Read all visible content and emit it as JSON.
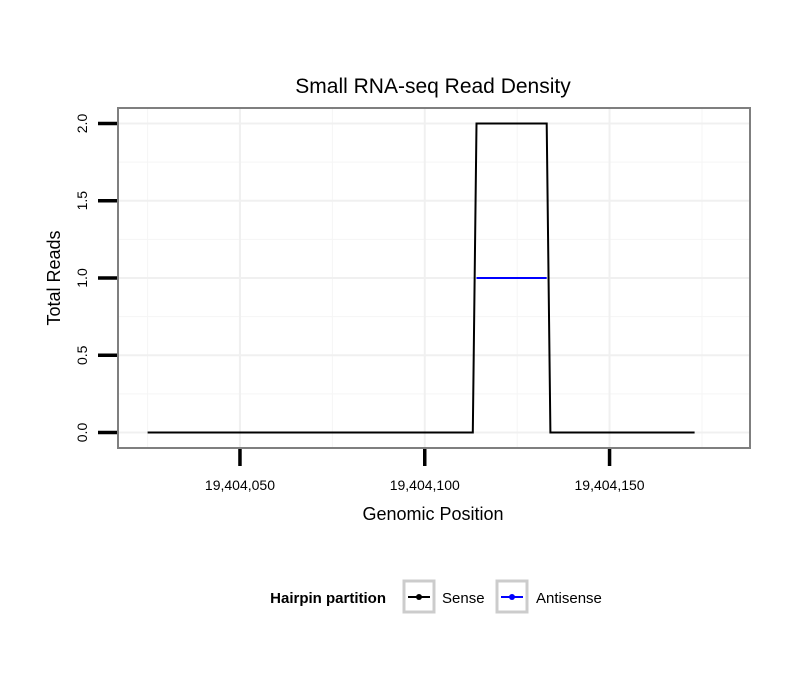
{
  "chart_data": {
    "type": "line",
    "title": "Small RNA-seq Read Density",
    "xlabel": "Genomic Position",
    "ylabel": "Total Reads",
    "xlim": [
      19404017,
      19404188
    ],
    "ylim": [
      -0.1,
      2.1
    ],
    "x_ticks": [
      19404050,
      19404100,
      19404150
    ],
    "x_tick_labels": [
      "19,404,050",
      "19,404,100",
      "19,404,150"
    ],
    "y_ticks": [
      0,
      0.5,
      1,
      1.5,
      2
    ],
    "y_tick_labels": [
      "0.0",
      "0.5",
      "1.0",
      "1.5",
      "2.0"
    ],
    "grid": true,
    "legend": {
      "title": "Hairpin partition",
      "position": "bottom",
      "entries": [
        "Sense",
        "Antisense"
      ]
    },
    "series": [
      {
        "name": "Sense",
        "color": "#000000",
        "x": [
          19404025,
          19404113,
          19404114,
          19404133,
          19404134,
          19404173
        ],
        "y": [
          0,
          0,
          2,
          2,
          0,
          0
        ]
      },
      {
        "name": "Antisense",
        "color": "#0000ff",
        "x": [
          19404114,
          19404133
        ],
        "y": [
          1,
          1
        ]
      }
    ]
  }
}
